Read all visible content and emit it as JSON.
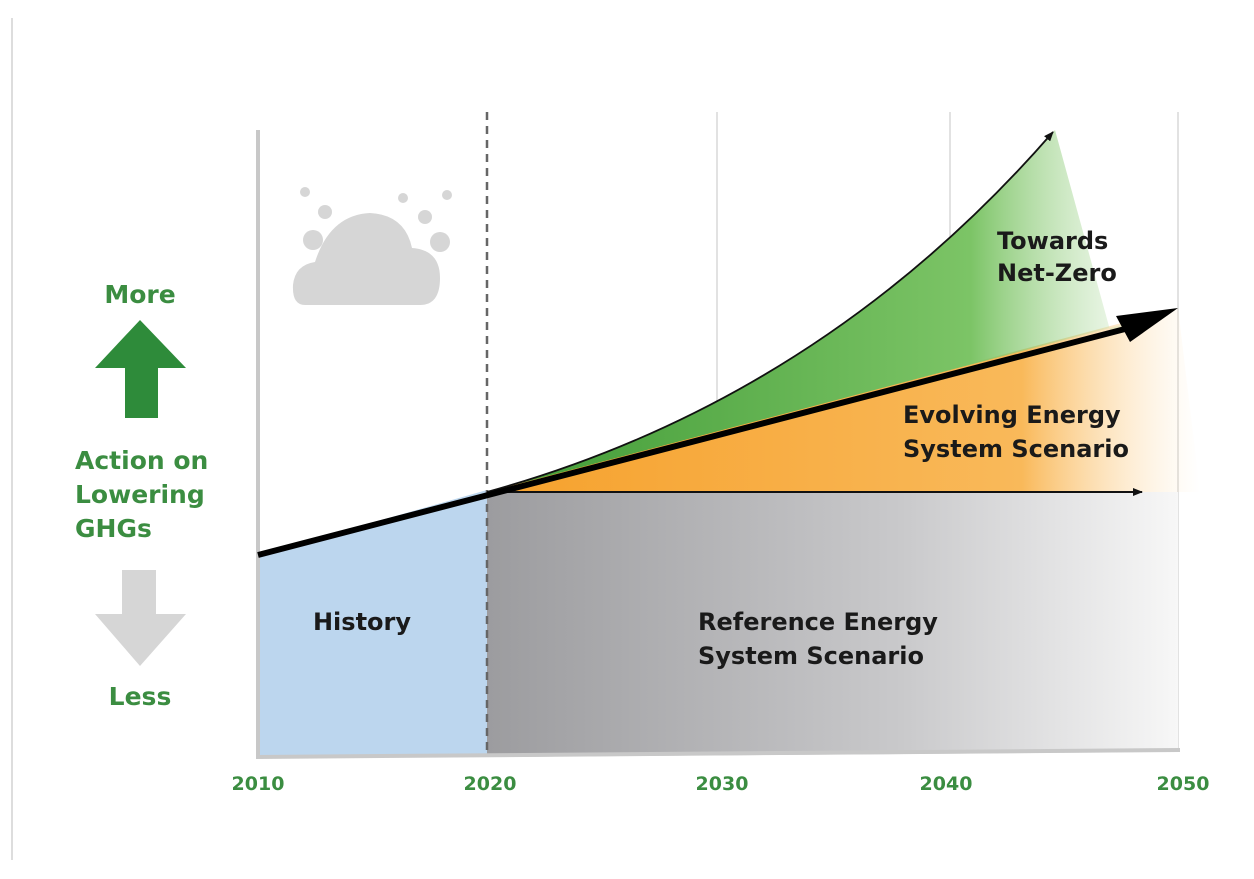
{
  "y_axis": {
    "top": "More",
    "middle": [
      "Action on",
      "Lowering",
      "GHGs"
    ],
    "bottom": "Less"
  },
  "x_axis": {
    "labels": [
      "2010",
      "2020",
      "2030",
      "2040",
      "2050"
    ]
  },
  "regions": {
    "history": [
      "History"
    ],
    "reference": [
      "Reference Energy",
      "System Scenario"
    ],
    "evolving": [
      "Evolving Energy",
      "System Scenario"
    ],
    "net_zero": [
      "Towards",
      "Net-Zero"
    ]
  }
}
